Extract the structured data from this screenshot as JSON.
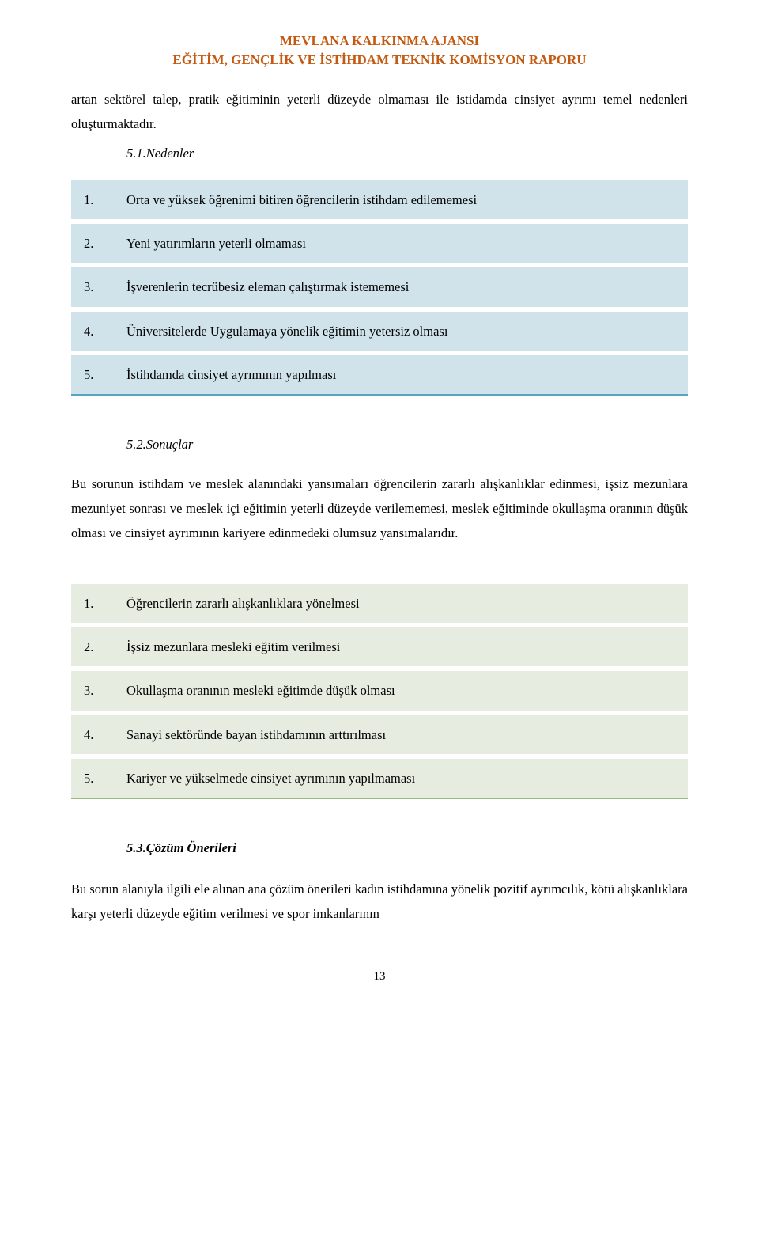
{
  "header": {
    "line1": "MEVLANA KALKINMA AJANSI",
    "line2": "EĞİTİM, GENÇLİK VE İSTİHDAM TEKNİK KOMİSYON RAPORU",
    "color": "#c45a11"
  },
  "intro_para": "artan sektörel talep, pratik eğitiminin yeterli düzeyde olmaması ile istidamda cinsiyet ayrımı temel nedenleri oluşturmaktadır.",
  "sec51": {
    "heading": "5.1.Nedenler",
    "row_color": "#d0e3ea",
    "bottom_border": "#5aa3bc",
    "items": [
      {
        "num": "1.",
        "text": "Orta ve yüksek öğrenimi bitiren öğrencilerin istihdam edilememesi"
      },
      {
        "num": "2.",
        "text": "Yeni yatırımların yeterli olmaması"
      },
      {
        "num": "3.",
        "text": "İşverenlerin tecrübesiz eleman çalıştırmak istememesi"
      },
      {
        "num": "4.",
        "text": "Üniversitelerde Uygulamaya yönelik eğitimin yetersiz olması"
      },
      {
        "num": "5.",
        "text": "İstihdamda cinsiyet ayrımının yapılması"
      }
    ]
  },
  "sec52": {
    "heading": "5.2.Sonuçlar",
    "para": "Bu sorunun istihdam ve meslek alanındaki yansımaları öğrencilerin zararlı alışkanlıklar edinmesi, işsiz mezunlara mezuniyet sonrası ve meslek içi eğitimin yeterli düzeyde verilememesi, meslek eğitiminde okullaşma oranının düşük olması ve cinsiyet ayrımının kariyere edinmedeki olumsuz yansımalarıdır.",
    "row_color": "#e6ede0",
    "bottom_border": "#9ab97f",
    "items": [
      {
        "num": "1.",
        "text": "Öğrencilerin zararlı alışkanlıklara yönelmesi"
      },
      {
        "num": "2.",
        "text": "İşsiz mezunlara mesleki eğitim verilmesi"
      },
      {
        "num": "3.",
        "text": "Okullaşma oranının mesleki eğitimde düşük olması"
      },
      {
        "num": "4.",
        "text": "Sanayi sektöründe bayan istihdamının arttırılması"
      },
      {
        "num": "5.",
        "text": "Kariyer ve yükselmede cinsiyet ayrımının yapılmaması"
      }
    ]
  },
  "sec53": {
    "heading": "5.3.Çözüm Önerileri",
    "para": "Bu sorun alanıyla ilgili ele alınan ana çözüm önerileri kadın istihdamına yönelik pozitif ayrımcılık, kötü alışkanlıklara karşı yeterli düzeyde eğitim verilmesi ve spor imkanlarının"
  },
  "page_number": "13"
}
